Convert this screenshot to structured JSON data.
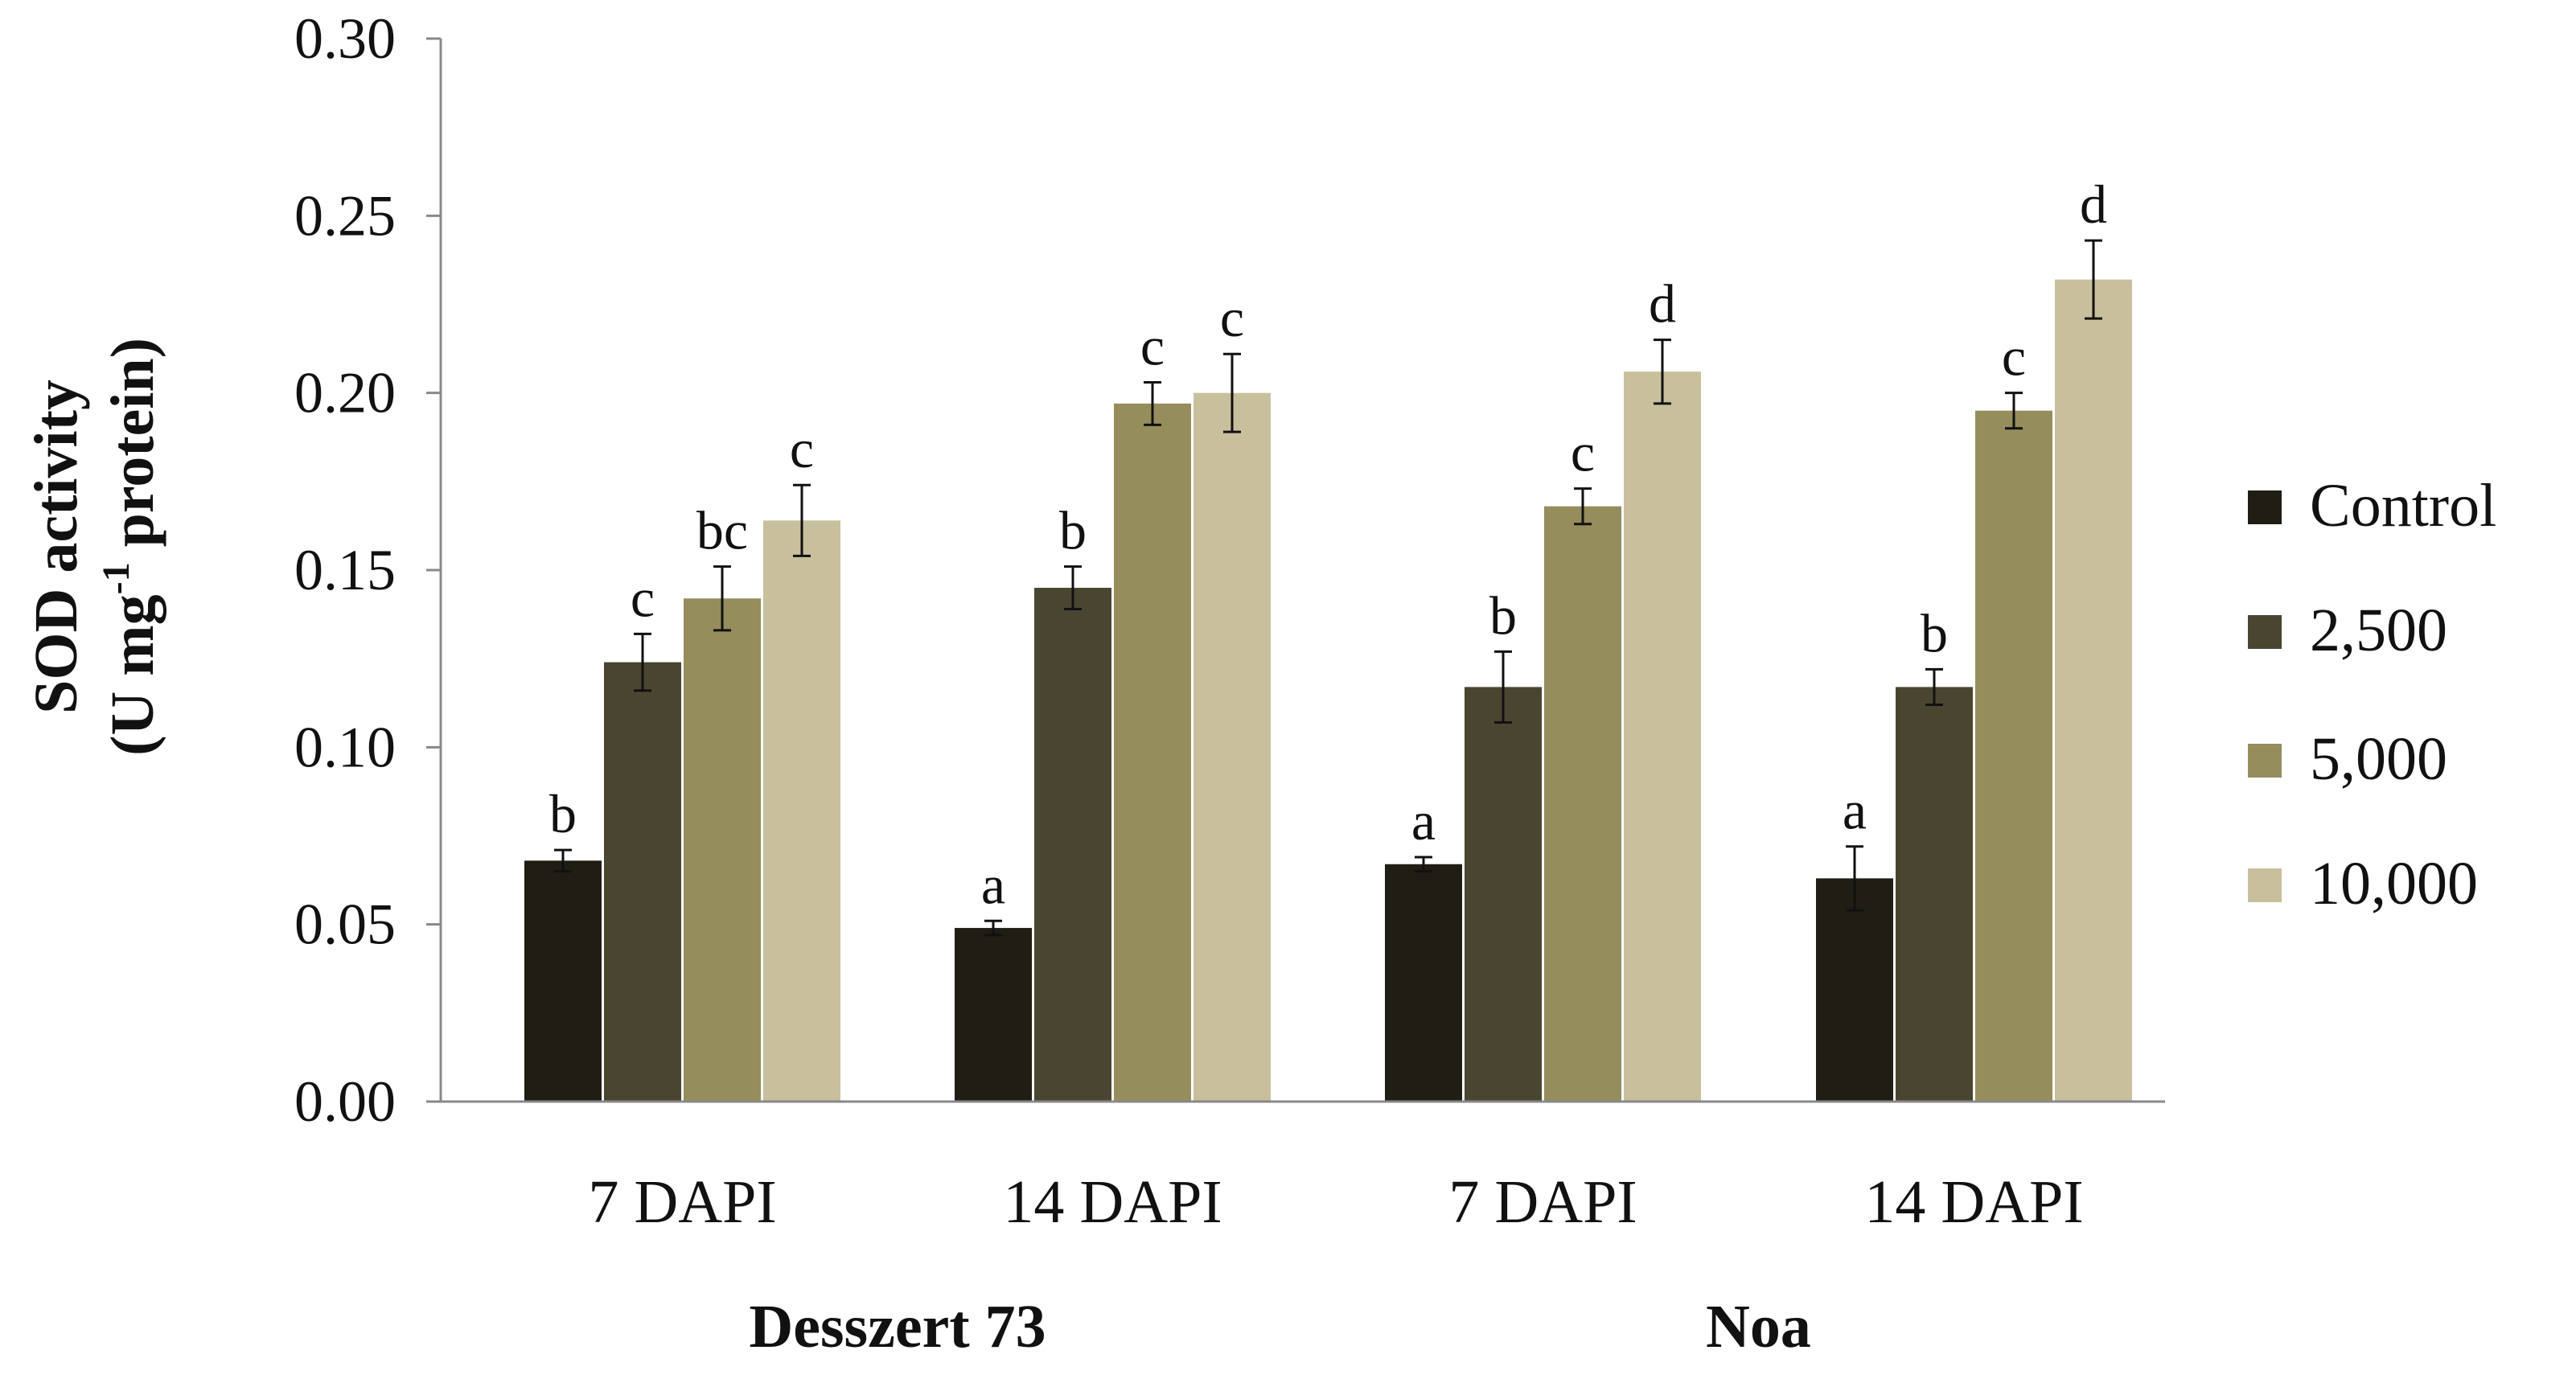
{
  "chart_data": {
    "type": "bar",
    "title": "",
    "ylabel_line1": "SOD activity",
    "ylabel_line2_prefix": "(U mg",
    "ylabel_line2_sup": "-1",
    "ylabel_line2_suffix": " protein)",
    "ylim": [
      0,
      0.3
    ],
    "yticks": [
      "0.00",
      "0.05",
      "0.10",
      "0.15",
      "0.20",
      "0.25",
      "0.30"
    ],
    "ytick_values": [
      0,
      0.05,
      0.1,
      0.15,
      0.2,
      0.25,
      0.3
    ],
    "grid": false,
    "legend_position": "right",
    "categories": [
      "7 DAPI",
      "14 DAPI",
      "7 DAPI",
      "14 DAPI"
    ],
    "groups": [
      {
        "label": "Desszert 73",
        "categories": [
          0,
          1
        ]
      },
      {
        "label": "Noa",
        "categories": [
          2,
          3
        ]
      }
    ],
    "series": [
      {
        "name": "Control",
        "color": "#1f1d14",
        "values": [
          0.068,
          0.049,
          0.067,
          0.063
        ],
        "errors": [
          0.003,
          0.002,
          0.002,
          0.009
        ],
        "letters": [
          "b",
          "a",
          "a",
          "a"
        ]
      },
      {
        "name": "2,500",
        "color": "#4a4530",
        "values": [
          0.124,
          0.145,
          0.117,
          0.117
        ],
        "errors": [
          0.008,
          0.006,
          0.01,
          0.005
        ],
        "letters": [
          "c",
          "b",
          "b",
          "b"
        ]
      },
      {
        "name": "5,000",
        "color": "#958d5c",
        "values": [
          0.142,
          0.197,
          0.168,
          0.195
        ],
        "errors": [
          0.009,
          0.006,
          0.005,
          0.005
        ],
        "letters": [
          "bc",
          "c",
          "c",
          "c"
        ]
      },
      {
        "name": "10,000",
        "color": "#c8c09c",
        "values": [
          0.164,
          0.2,
          0.206,
          0.232
        ],
        "errors": [
          0.01,
          0.011,
          0.009,
          0.011
        ],
        "letters": [
          "c",
          "c",
          "d",
          "d"
        ]
      }
    ]
  }
}
